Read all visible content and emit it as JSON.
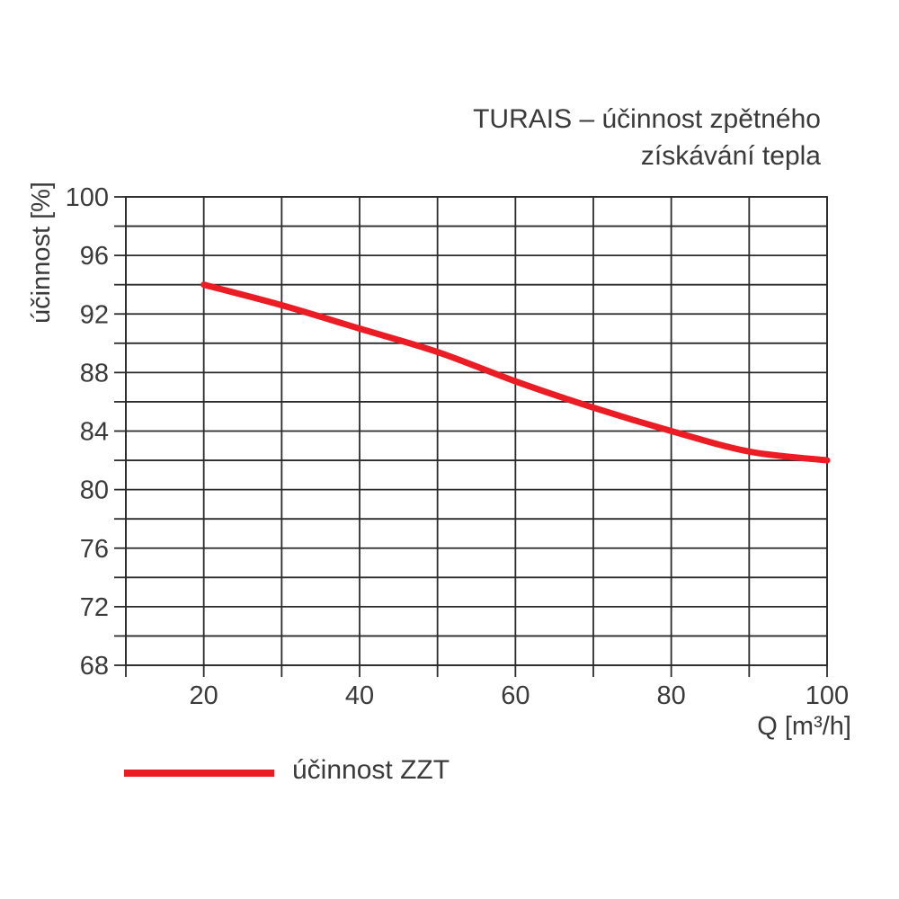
{
  "title": {
    "line1": "TURAIS – účinnost zpětného",
    "line2": "získávání tepla"
  },
  "chart_data": {
    "type": "line",
    "title": "TURAIS – účinnost zpětného získávání tepla",
    "xlabel": "Q [m³/h]",
    "ylabel": "účinnost [%]",
    "xlim": [
      10,
      100
    ],
    "ylim": [
      68,
      100
    ],
    "x_grid_step": 10,
    "y_grid_step": 2,
    "x_tick_labels": [
      20,
      40,
      60,
      80,
      100
    ],
    "y_tick_labels": [
      100,
      96,
      92,
      88,
      84,
      80,
      76,
      72,
      68
    ],
    "grid": true,
    "legend_position": "bottom-left",
    "series": [
      {
        "name": "účinnost ZZT",
        "color": "#ec1c24",
        "x": [
          20,
          30,
          40,
          50,
          60,
          70,
          80,
          90,
          100
        ],
        "y": [
          94.0,
          92.6,
          91.0,
          89.4,
          87.4,
          85.6,
          84.0,
          82.6,
          82.0
        ]
      }
    ]
  },
  "legend": {
    "label": "účinnost ZZT"
  },
  "colors": {
    "accent_red": "#ec1c24",
    "text": "#3a3a3a",
    "grid": "#2b2b2b",
    "background": "#ffffff"
  }
}
